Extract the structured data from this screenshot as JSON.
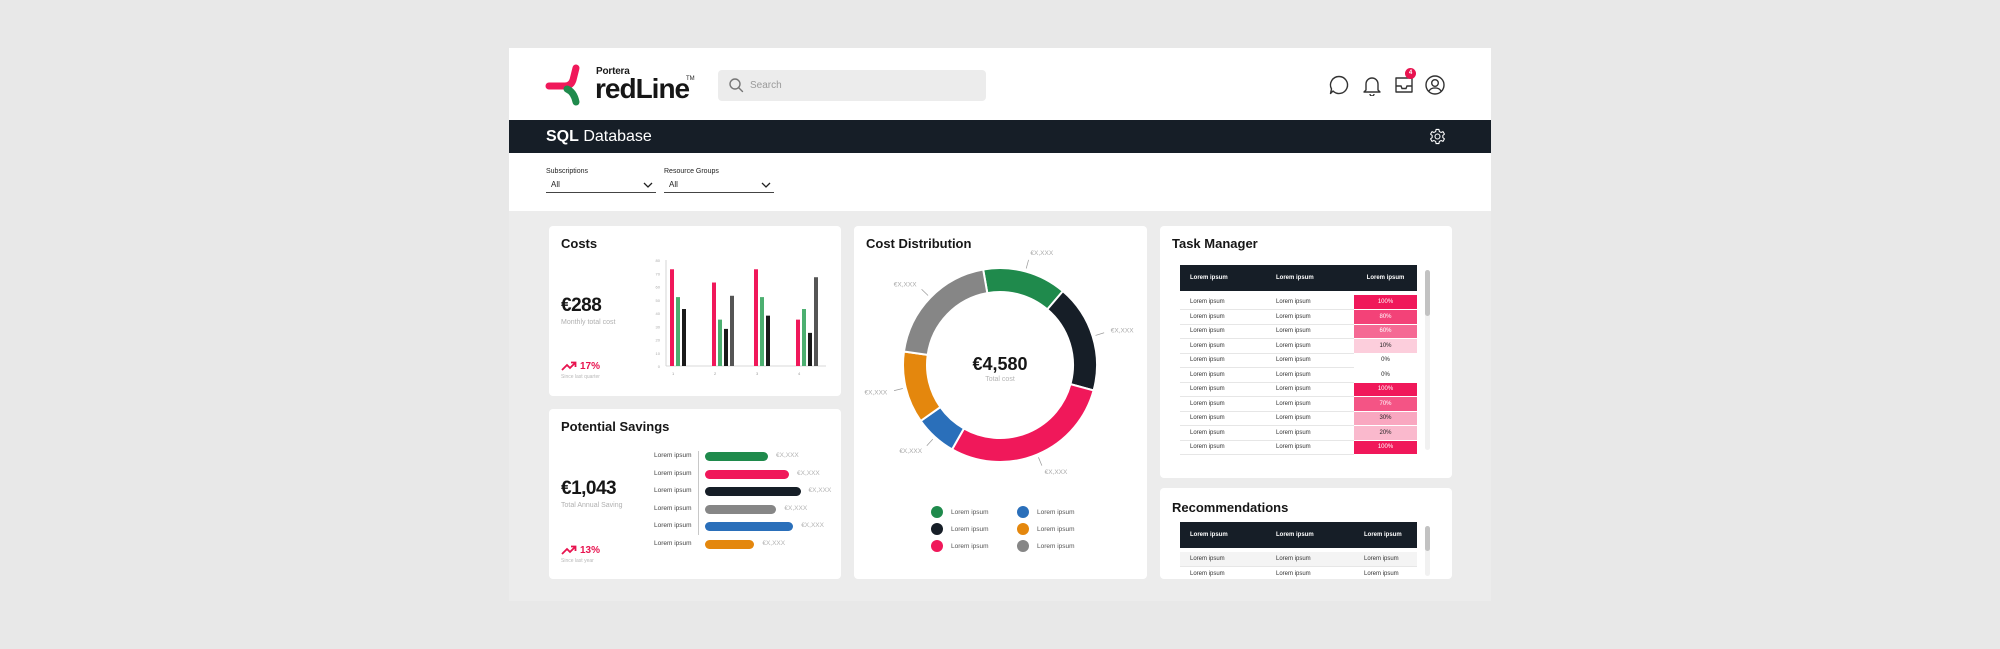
{
  "header": {
    "brand_small": "Portera",
    "brand_big": "redLine",
    "brand_tm": "TM",
    "search_placeholder": "Search",
    "icons": [
      "chat-icon",
      "bell-icon",
      "inbox-icon",
      "user-icon"
    ],
    "inbox_badge": "4"
  },
  "titlebar": {
    "title_bold": "SQL",
    "title_rest": " Database"
  },
  "filters": [
    {
      "label": "Subscriptions",
      "value": "All"
    },
    {
      "label": "Resource Groups",
      "value": "All"
    }
  ],
  "costs": {
    "title": "Costs",
    "value": "€288",
    "value_label": "Monthly total cost",
    "trend": "17%",
    "trend_label": "Since last quarter",
    "chart_data": {
      "type": "bar",
      "categories": [
        "1",
        "2",
        "3",
        "4"
      ],
      "yticks": [
        "80",
        "70",
        "60",
        "50",
        "40",
        "30",
        "20",
        "10",
        "0"
      ],
      "ylim": [
        0,
        80
      ],
      "colors": [
        "#f0185a",
        "#4caf70",
        "#1a1a1a",
        "#555555"
      ],
      "series": [
        {
          "values": [
            73,
            63,
            73,
            35
          ]
        },
        {
          "values": [
            52,
            35,
            52,
            43
          ]
        },
        {
          "values": [
            43,
            28,
            38,
            25
          ]
        },
        {
          "values": [
            0,
            53,
            0,
            67
          ]
        }
      ]
    }
  },
  "savings": {
    "title": "Potential Savings",
    "value": "€1,043",
    "value_label": "Total Annual Saving",
    "trend": "13%",
    "trend_label": "Since last year",
    "chart_data": {
      "type": "bar",
      "orientation": "horizontal",
      "categories": [
        "Lorem ipsum",
        "Lorem ipsum",
        "Lorem ipsum",
        "Lorem ipsum",
        "Lorem ipsum",
        "Lorem ipsum"
      ],
      "values": [
        60,
        80,
        91,
        68,
        84,
        47
      ],
      "value_labels": [
        "€X,XXX",
        "€X,XXX",
        "€X,XXX",
        "€X,XXX",
        "€X,XXX",
        "€X,XXX"
      ],
      "colors": [
        "#1f8a4c",
        "#f0185a",
        "#161e27",
        "#868686",
        "#2a6fba",
        "#e4870d"
      ]
    }
  },
  "distribution": {
    "title": "Cost Distribution",
    "center_value": "€4,580",
    "center_label": "Total cost",
    "chart_data": {
      "type": "pie",
      "style": "donut",
      "values": [
        14,
        18,
        29,
        7,
        12,
        20
      ],
      "colors": [
        "#1f8a4c",
        "#161e27",
        "#f0185a",
        "#2a6fba",
        "#e4870d",
        "#868686"
      ],
      "slice_labels": [
        "€X,XXX",
        "€X,XXX",
        "€X,XXX",
        "€X,XXX",
        "€X,XXX",
        "€X,XXX"
      ]
    },
    "legend": [
      {
        "label": "Lorem ipsum",
        "color": "#1f8a4c"
      },
      {
        "label": "Lorem ipsum",
        "color": "#2a6fba"
      },
      {
        "label": "Lorem ipsum",
        "color": "#161e27"
      },
      {
        "label": "Lorem ipsum",
        "color": "#e4870d"
      },
      {
        "label": "Lorem ipsum",
        "color": "#f0185a"
      },
      {
        "label": "Lorem ipsum",
        "color": "#868686"
      }
    ]
  },
  "tasks": {
    "title": "Task Manager",
    "headers": [
      "Lorem ipsum",
      "Lorem ipsum",
      "Lorem ipsum"
    ],
    "rows": [
      {
        "a": "Lorem ipsum",
        "b": "Lorem ipsum",
        "pct": "100%",
        "level": 1.0
      },
      {
        "a": "Lorem ipsum",
        "b": "Lorem ipsum",
        "pct": "80%",
        "level": 0.8
      },
      {
        "a": "Lorem ipsum",
        "b": "Lorem ipsum",
        "pct": "60%",
        "level": 0.6
      },
      {
        "a": "Lorem ipsum",
        "b": "Lorem ipsum",
        "pct": "10%",
        "level": 0.1
      },
      {
        "a": "Lorem ipsum",
        "b": "Lorem ipsum",
        "pct": "0%",
        "level": 0
      },
      {
        "a": "Lorem ipsum",
        "b": "Lorem ipsum",
        "pct": "0%",
        "level": 0
      },
      {
        "a": "Lorem ipsum",
        "b": "Lorem ipsum",
        "pct": "100%",
        "level": 1.0
      },
      {
        "a": "Lorem ipsum",
        "b": "Lorem ipsum",
        "pct": "70%",
        "level": 0.7
      },
      {
        "a": "Lorem ipsum",
        "b": "Lorem ipsum",
        "pct": "30%",
        "level": 0.3
      },
      {
        "a": "Lorem ipsum",
        "b": "Lorem ipsum",
        "pct": "20%",
        "level": 0.2
      },
      {
        "a": "Lorem ipsum",
        "b": "Lorem ipsum",
        "pct": "100%",
        "level": 1.0
      }
    ]
  },
  "recommendations": {
    "title": "Recommendations",
    "headers": [
      "Lorem ipsum",
      "Lorem ipsum",
      "Lorem ipsum"
    ],
    "rows": [
      {
        "a": "Lorem ipsum",
        "b": "Lorem ipsum",
        "c": "Lorem ipsum"
      },
      {
        "a": "Lorem ipsum",
        "b": "Lorem ipsum",
        "c": "Lorem ipsum"
      }
    ]
  }
}
